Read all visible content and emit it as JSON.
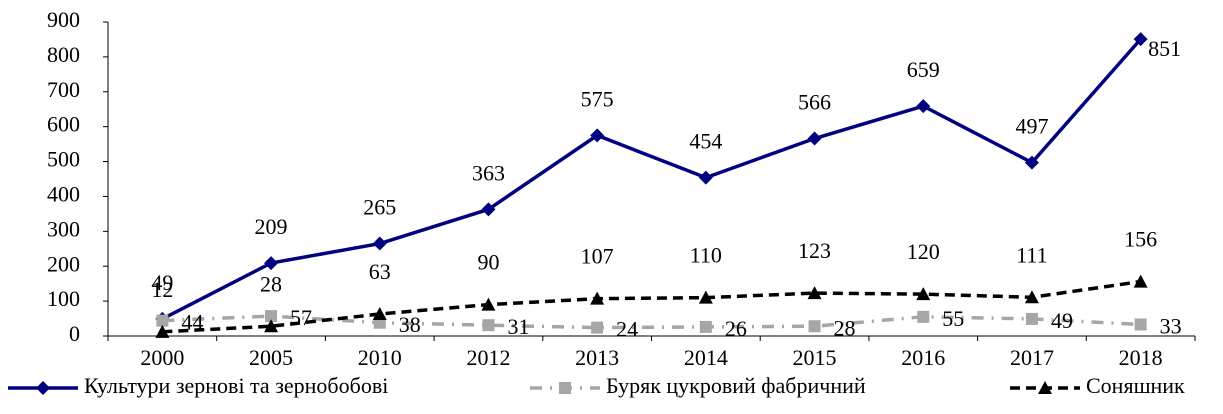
{
  "chart_data": {
    "type": "line",
    "categories": [
      "2000",
      "2005",
      "2010",
      "2012",
      "2013",
      "2014",
      "2015",
      "2016",
      "2017",
      "2018"
    ],
    "series": [
      {
        "name": "Культури зернові та зернобобові",
        "color": "#000080",
        "values": [
          49,
          209,
          265,
          363,
          575,
          454,
          566,
          659,
          497,
          851
        ]
      },
      {
        "name": "Буряк цукровий фабричний",
        "color": "#a6a6a6",
        "values": [
          44,
          57,
          38,
          31,
          24,
          26,
          28,
          55,
          49,
          33
        ]
      },
      {
        "name": "Соняшник",
        "color": "#000000",
        "values": [
          12,
          28,
          63,
          90,
          107,
          110,
          123,
          120,
          111,
          156
        ]
      }
    ],
    "ylim": [
      0,
      900
    ],
    "yticks": [
      0,
      100,
      200,
      300,
      400,
      500,
      600,
      700,
      800,
      900
    ],
    "legend": "bottom"
  }
}
